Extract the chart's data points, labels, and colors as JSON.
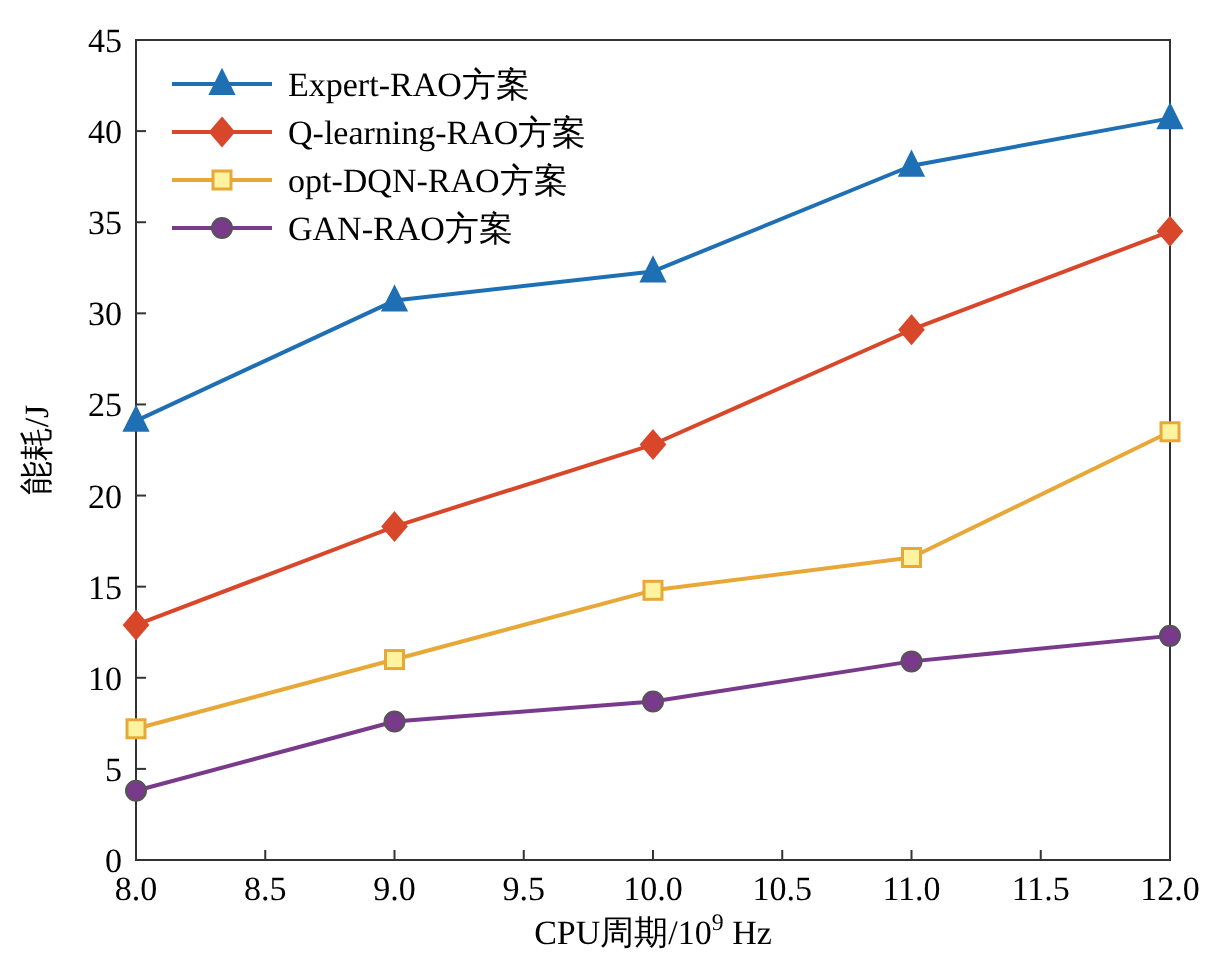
{
  "chart_data": {
    "type": "line",
    "xlabel": "CPU周期/10$^{9}$ Hz",
    "ylabel": "能耗/J",
    "x": [
      8,
      9,
      10,
      11,
      12
    ],
    "xlim": [
      8,
      12
    ],
    "ylim": [
      0,
      45
    ],
    "xticks": [
      {
        "value": 8,
        "label": "8.0"
      },
      {
        "value": 8.5,
        "label": "8.5"
      },
      {
        "value": 9,
        "label": "9.0"
      },
      {
        "value": 9.5,
        "label": "9.5"
      },
      {
        "value": 10,
        "label": "10.0"
      },
      {
        "value": 10.5,
        "label": "10.5"
      },
      {
        "value": 11,
        "label": "11.0"
      },
      {
        "value": 11.5,
        "label": "11.5"
      },
      {
        "value": 12,
        "label": "12.0"
      }
    ],
    "yticks": [
      0,
      5,
      10,
      15,
      20,
      25,
      30,
      35,
      40,
      45
    ],
    "grid": false,
    "legend": "top left",
    "line_style": "solid",
    "series": [
      {
        "name": "Expert-RAO方案",
        "color": "#1f6fb4",
        "marker": "triangle",
        "values": [
          24.1,
          30.7,
          32.3,
          38.1,
          40.7
        ]
      },
      {
        "name": "Q-learning-RAO方案",
        "color": "#d9472b",
        "marker": "diamond",
        "values": [
          12.9,
          18.3,
          22.8,
          29.1,
          34.5
        ]
      },
      {
        "name": "opt-DQN-RAO方案",
        "color": "#e8a838",
        "marker": "square",
        "values": [
          7.2,
          11.0,
          14.8,
          16.6,
          23.5
        ]
      },
      {
        "name": "GAN-RAO方案",
        "color": "#7a3a8c",
        "marker": "circle",
        "values": [
          3.8,
          7.6,
          8.7,
          10.9,
          12.3
        ]
      }
    ]
  }
}
